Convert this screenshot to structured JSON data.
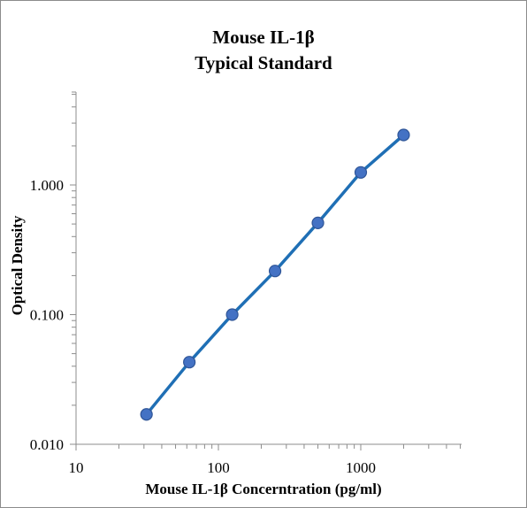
{
  "chart_data": {
    "type": "scatter",
    "title_lines": [
      "Mouse IL-1β",
      "Typical Standard"
    ],
    "xlabel": "Mouse IL-1β Concerntration (pg/ml)",
    "ylabel": "Optical Density",
    "x_scale": "log",
    "y_scale": "log",
    "xlim": [
      10,
      5000
    ],
    "ylim": [
      0.01,
      5
    ],
    "x_tick_labels": [
      {
        "value": 10,
        "label": "10"
      },
      {
        "value": 100,
        "label": "100"
      },
      {
        "value": 1000,
        "label": "1000"
      }
    ],
    "y_tick_labels": [
      {
        "value": 0.01,
        "label": "0.010"
      },
      {
        "value": 0.1,
        "label": "0.100"
      },
      {
        "value": 1,
        "label": "1.000"
      }
    ],
    "grid": false,
    "legend": "none",
    "series": [
      {
        "x": [
          31.25,
          62.5,
          125,
          250,
          500,
          1000,
          2000
        ],
        "y": [
          0.017,
          0.043,
          0.1,
          0.217,
          0.51,
          1.25,
          2.43
        ],
        "marker_color": "#4472C4",
        "line_color": "#1F6FB5"
      }
    ]
  }
}
